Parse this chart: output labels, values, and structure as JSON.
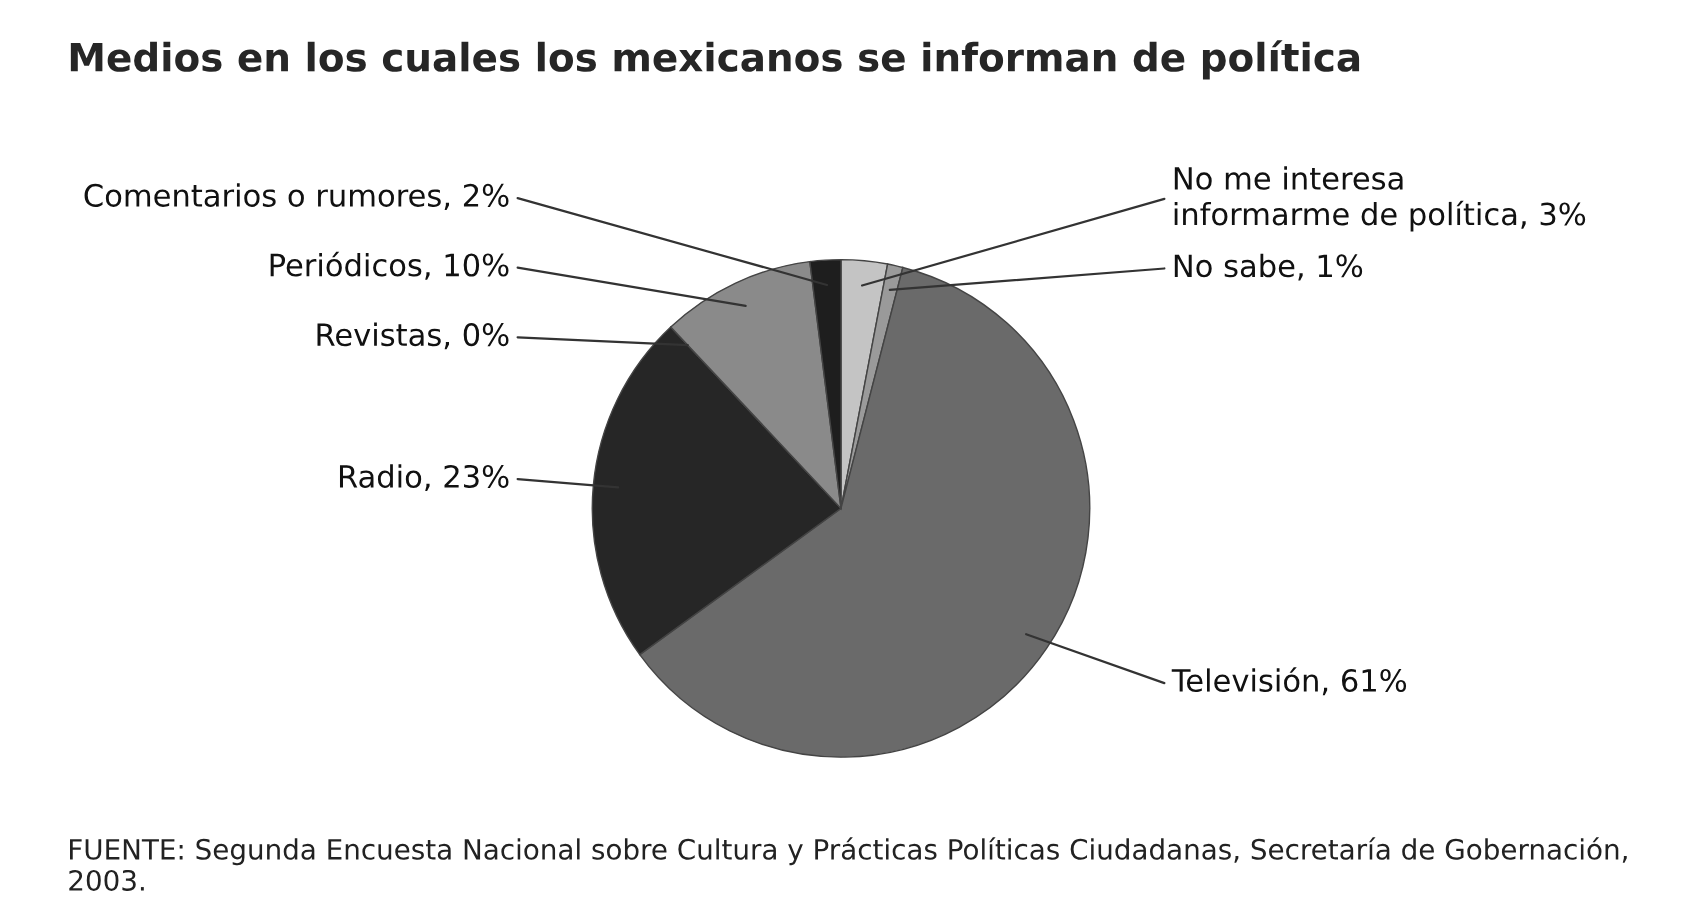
{
  "chart_data": {
    "type": "pie",
    "title": "Medios en los cuales los mexicanos se informan de política",
    "categories": [
      "No me interesa\ninformarme de política, 3%",
      "No sabe, 1%",
      "Televisión, 61%",
      "Radio, 23%",
      "Revistas, 0%",
      "Periódicos, 10%",
      "Comentarios o rumores, 2%"
    ],
    "values": [
      3,
      1,
      61,
      23,
      0,
      10,
      2
    ],
    "colors": [
      "#c4c4c4",
      "#9a9a9a",
      "#6a6a6a",
      "#262626",
      "#f0f0f0",
      "#8a8a8a",
      "#1e1e1e"
    ],
    "annotations": [
      "FUENTE: Segunda Encuesta Nacional sobre Cultura y Prácticas Políticas Ciudadanas, Secretaría de Gobernación, 2003."
    ]
  }
}
